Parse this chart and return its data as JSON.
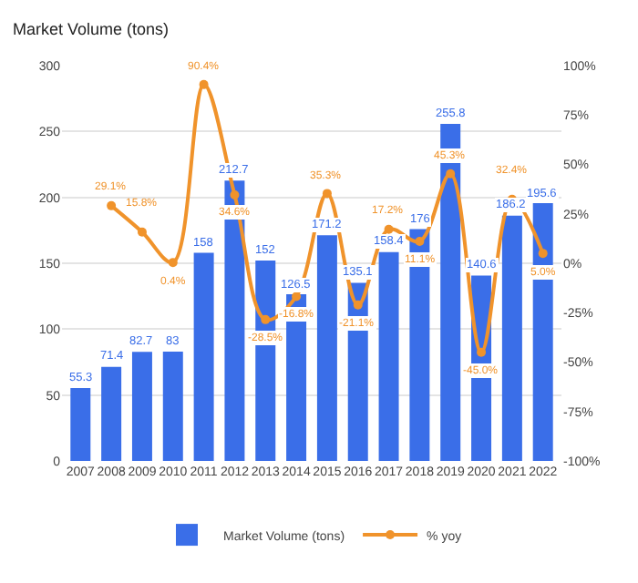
{
  "chart_data": {
    "type": "bar",
    "title": "Market Volume (tons)",
    "categories": [
      "2007",
      "2008",
      "2009",
      "2010",
      "2011",
      "2012",
      "2013",
      "2014",
      "2015",
      "2016",
      "2017",
      "2018",
      "2019",
      "2020",
      "2021",
      "2022"
    ],
    "series": [
      {
        "name": "Market Volume (tons)",
        "color": "#3a6ee8",
        "values": [
          55.3,
          71.4,
          82.7,
          83,
          158,
          212.7,
          152,
          126.5,
          171.2,
          135.1,
          158.4,
          176,
          255.8,
          140.6,
          186.2,
          195.6
        ],
        "value_labels": [
          "55.3",
          "71.4",
          "82.7",
          "83",
          "158",
          "212.7",
          "152",
          "126.5",
          "171.2",
          "135.1",
          "158.4",
          "176",
          "255.8",
          "140.6",
          "186.2",
          "195.6"
        ]
      },
      {
        "name": "% yoy",
        "type": "line",
        "axis": "y2",
        "color": "#f0932b",
        "values": [
          null,
          29.1,
          15.8,
          0.4,
          90.4,
          34.6,
          -28.5,
          -16.8,
          35.3,
          -21.1,
          17.2,
          11.1,
          45.3,
          -45.0,
          32.4,
          5.0
        ],
        "value_labels": [
          null,
          "29.1%",
          "15.8%",
          "0.4%",
          "90.4%",
          "34.6%",
          "-28.5%",
          "-16.8%",
          "35.3%",
          "-21.1%",
          "17.2%",
          "11.1%",
          "45.3%",
          "-45.0%",
          "32.4%",
          "5.0%"
        ]
      }
    ],
    "ylim": [
      0,
      300
    ],
    "yticks": [
      0,
      50,
      100,
      150,
      200,
      250,
      300
    ],
    "y2lim": [
      -100,
      100
    ],
    "y2ticks": [
      {
        "value": -100,
        "label": "-100%"
      },
      {
        "value": -75,
        "label": "-75%"
      },
      {
        "value": -50,
        "label": "-50%"
      },
      {
        "value": -25,
        "label": "-25%"
      },
      {
        "value": 0,
        "label": "0%"
      },
      {
        "value": 25,
        "label": "25%"
      },
      {
        "value": 50,
        "label": "50%"
      },
      {
        "value": 75,
        "label": "75%"
      },
      {
        "value": 100,
        "label": "100%"
      }
    ],
    "grid": "y",
    "legend": "bottom",
    "marker": "circle"
  }
}
